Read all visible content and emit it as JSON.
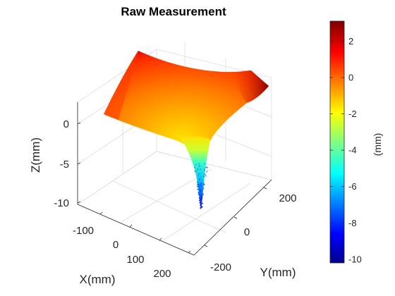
{
  "chart_data": {
    "type": "surface3d",
    "title": "Raw Measurement",
    "xlabel": "X(mm)",
    "ylabel": "Y(mm)",
    "zlabel": "Z(mm)",
    "colorbar_label": "(mm)",
    "colormap": "jet",
    "x_ticks": [
      "-100",
      "0",
      "100",
      "200"
    ],
    "y_ticks": [
      "-200",
      "0",
      "200"
    ],
    "z_ticks": [
      "-10",
      "-5",
      "0"
    ],
    "colorbar_ticks": [
      "2",
      "0",
      "-2",
      "-4",
      "-6",
      "-8",
      "-10"
    ],
    "xlim": [
      -150,
      250
    ],
    "ylim": [
      -250,
      250
    ],
    "zlim": [
      -10,
      3
    ],
    "clim": [
      -10.2,
      3.1
    ],
    "grid": true,
    "colorbar_position": "right",
    "surface": {
      "description_points": [
        {
          "x": -150,
          "y": -250,
          "z": 0.9
        },
        {
          "x": -150,
          "y": 250,
          "z": 1.4
        },
        {
          "x": 250,
          "y": -250,
          "z": 0.8
        },
        {
          "x": 250,
          "y": 250,
          "z": 3.0
        },
        {
          "x": 0,
          "y": 0,
          "z": -10.2
        }
      ]
    }
  }
}
